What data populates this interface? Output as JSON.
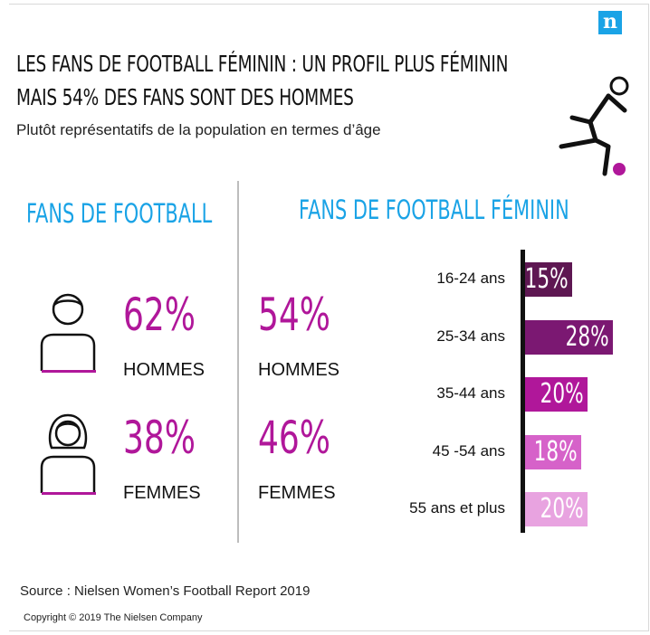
{
  "header": {
    "title_line1": "LES FANS DE FOOTBALL FÉMININ : UN PROFIL PLUS FÉMININ",
    "title_line2": "MAIS 54% DES FANS SONT DES HOMMES",
    "subtitle": "Plutôt représentatifs de la population en termes d’âge",
    "logo_letter": "n"
  },
  "colors": {
    "accent_blue": "#1aa3e6",
    "magenta": "#b0179a",
    "age_bars": [
      "#5e1752",
      "#7b1872",
      "#b0179a",
      "#d662c9",
      "#e8a3e0"
    ]
  },
  "icons": [
    "person-male-icon",
    "person-female-icon",
    "football-player-icon"
  ],
  "chart_data": [
    {
      "type": "table",
      "title": "FANS DE FOOTBALL",
      "categories": [
        "HOMMES",
        "FEMMES"
      ],
      "values": [
        62,
        38
      ],
      "value_labels": [
        "62%",
        "38%"
      ]
    },
    {
      "type": "table",
      "title": "FANS DE FOOTBALL FÉMININ",
      "categories": [
        "HOMMES",
        "FEMMES"
      ],
      "values": [
        54,
        46
      ],
      "value_labels": [
        "54%",
        "46%"
      ]
    },
    {
      "type": "bar",
      "orientation": "horizontal",
      "categories": [
        "16-24 ans",
        "25-34 ans",
        "35-44 ans",
        "45 -54 ans",
        "55 ans et plus"
      ],
      "values": [
        15,
        28,
        20,
        18,
        20
      ],
      "value_labels": [
        "15%",
        "28%",
        "20%",
        "18%",
        "20%"
      ],
      "xlim": [
        0,
        28
      ]
    }
  ],
  "footer": {
    "source": "Source : Nielsen Women’s Football Report 2019",
    "copyright": "Copyright © 2019 The Nielsen Company"
  }
}
